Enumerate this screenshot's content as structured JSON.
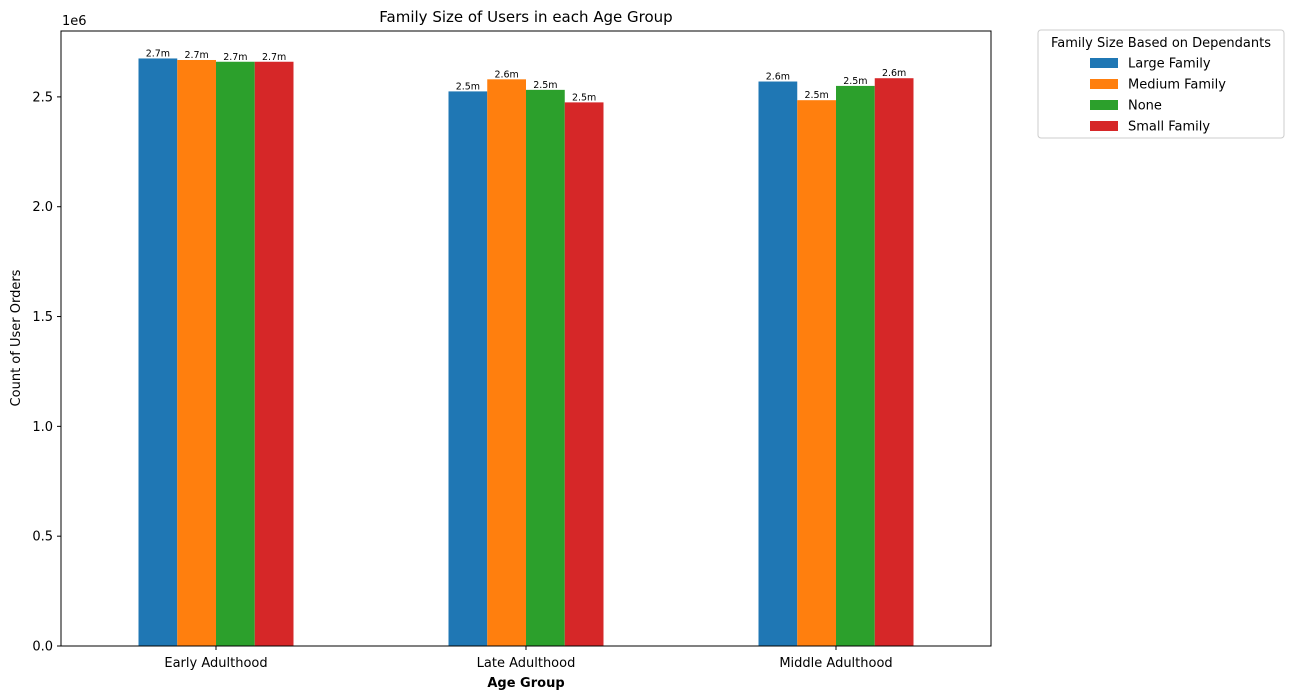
{
  "chart_data": {
    "type": "bar",
    "title": "Family Size of Users in each Age Group",
    "xlabel": "Age Group",
    "ylabel": "Count of User Orders",
    "y_offset_label": "1e6",
    "ylim": [
      0,
      2.8
    ],
    "y_ticks": [
      "0.0",
      "0.5",
      "1.0",
      "1.5",
      "2.0",
      "2.5"
    ],
    "categories": [
      "Early Adulthood",
      "Late Adulthood",
      "Middle Adulthood"
    ],
    "legend_title": "Family Size Based on Dependants",
    "legend_position": "outside-top-right",
    "grid": false,
    "series": [
      {
        "name": "Large Family",
        "color": "#1f77b4",
        "values": [
          2.675,
          2.525,
          2.57
        ],
        "labels": [
          "2.7m",
          "2.5m",
          "2.6m"
        ]
      },
      {
        "name": "Medium Family",
        "color": "#ff7f0e",
        "values": [
          2.668,
          2.58,
          2.485
        ],
        "labels": [
          "2.7m",
          "2.6m",
          "2.5m"
        ]
      },
      {
        "name": "None",
        "color": "#2ca02c",
        "values": [
          2.66,
          2.532,
          2.55
        ],
        "labels": [
          "2.7m",
          "2.5m",
          "2.5m"
        ]
      },
      {
        "name": "Small Family",
        "color": "#d62728",
        "values": [
          2.66,
          2.475,
          2.585
        ],
        "labels": [
          "2.7m",
          "2.5m",
          "2.6m"
        ]
      }
    ]
  }
}
